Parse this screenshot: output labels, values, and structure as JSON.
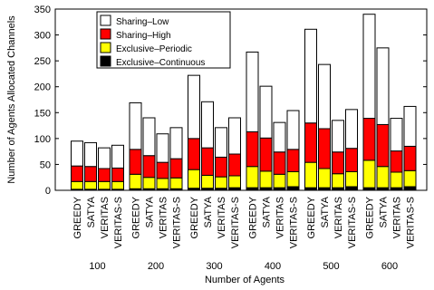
{
  "chart_data": {
    "type": "bar",
    "stacked": true,
    "xlabel": "Number of Agents",
    "ylabel": "Number of Agents Allocated Channels",
    "ylim": [
      0,
      350
    ],
    "yticks": [
      0,
      50,
      100,
      150,
      200,
      250,
      300,
      350
    ],
    "grid": false,
    "legend_position": "top-left",
    "groups": [
      "100",
      "200",
      "300",
      "400",
      "500",
      "600"
    ],
    "algorithms": [
      "GREEDY",
      "SATYA",
      "VERITAS",
      "VERITAS-S"
    ],
    "series": [
      {
        "name": "Exclusive–Continuous",
        "color": "#000000",
        "values": [
          [
            2,
            2,
            2,
            2
          ],
          [
            3,
            3,
            3,
            3
          ],
          [
            4,
            4,
            4,
            5
          ],
          [
            5,
            5,
            5,
            7
          ],
          [
            5,
            5,
            5,
            7
          ],
          [
            5,
            5,
            5,
            7
          ]
        ]
      },
      {
        "name": "Exclusive–Periodic",
        "color": "#ffff00",
        "values": [
          [
            15,
            15,
            15,
            15
          ],
          [
            28,
            22,
            20,
            21
          ],
          [
            36,
            25,
            22,
            23
          ],
          [
            41,
            32,
            26,
            29
          ],
          [
            49,
            37,
            27,
            29
          ],
          [
            53,
            41,
            30,
            31
          ]
        ]
      },
      {
        "name": "Sharing–High",
        "color": "#ff0000",
        "values": [
          [
            30,
            29,
            25,
            26
          ],
          [
            48,
            42,
            31,
            37
          ],
          [
            60,
            53,
            38,
            42
          ],
          [
            67,
            64,
            43,
            43
          ],
          [
            76,
            77,
            42,
            45
          ],
          [
            81,
            81,
            41,
            47
          ]
        ]
      },
      {
        "name": "Sharing–Low",
        "color": "#ffffff",
        "values": [
          [
            48,
            46,
            40,
            44
          ],
          [
            90,
            73,
            55,
            60
          ],
          [
            122,
            89,
            57,
            70
          ],
          [
            154,
            100,
            57,
            75
          ],
          [
            181,
            124,
            61,
            75
          ],
          [
            201,
            148,
            63,
            77
          ]
        ]
      }
    ]
  }
}
